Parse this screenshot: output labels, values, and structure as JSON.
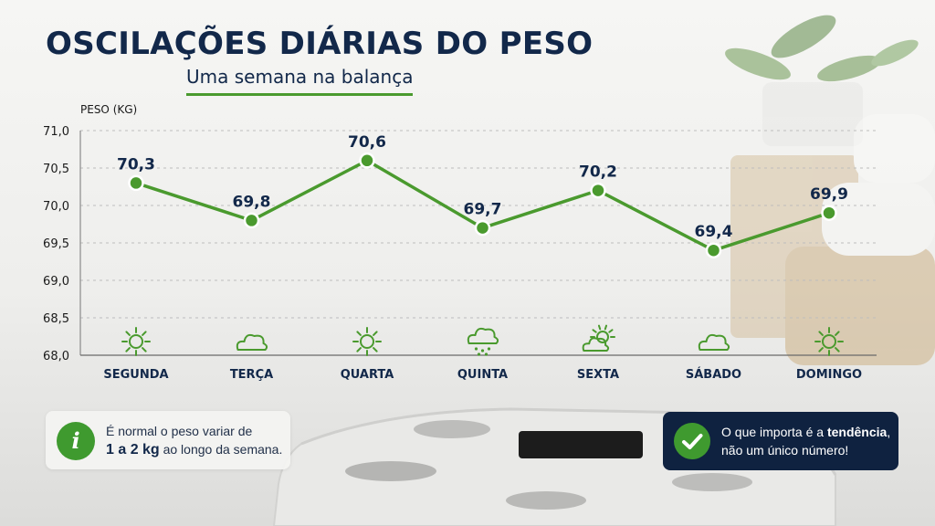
{
  "header": {
    "title": "OSCILAÇÕES DIÁRIAS DO PESO",
    "subtitle": "Uma semana na balança"
  },
  "colors": {
    "line": "#4a9a2e",
    "point": "#4a9a2e",
    "title": "#12284a",
    "axis_text": "#1a1a1a",
    "tip_background": "#0f2240"
  },
  "chart_data": {
    "type": "line",
    "title": "OSCILAÇÕES DIÁRIAS DO PESO",
    "subtitle": "Uma semana na balança",
    "xlabel": "",
    "ylabel": "PESO (KG)",
    "categories": [
      "SEGUNDA",
      "TERÇA",
      "QUARTA",
      "QUINTA",
      "SEXTA",
      "SÁBADO",
      "DOMINGO"
    ],
    "values": [
      70.3,
      69.8,
      70.6,
      69.7,
      70.2,
      69.4,
      69.9
    ],
    "data_labels": [
      "70,3",
      "69,8",
      "70,6",
      "69,7",
      "70,2",
      "69,4",
      "69,9"
    ],
    "ylim": [
      68.0,
      71.0
    ],
    "yticks": [
      68.0,
      68.5,
      69.0,
      69.5,
      70.0,
      70.5,
      71.0
    ],
    "ytick_labels": [
      "68,0",
      "68,5",
      "69,0",
      "69,5",
      "70,0",
      "70,5",
      "71,0"
    ],
    "grid": true,
    "legend": "none",
    "weather_icons": [
      "sun-icon",
      "cloud-icon",
      "sun-icon",
      "rain-cloud-icon",
      "partly-cloudy-icon",
      "cloud-icon",
      "sun-icon"
    ]
  },
  "info": {
    "icon": "info-icon",
    "text_before": "É normal o peso variar de",
    "text_bold": "1 a 2 kg",
    "text_after": "ao longo da semana."
  },
  "tip": {
    "icon": "checkmark-icon",
    "text_before": "O que importa é a",
    "text_bold": "tendência",
    "text_after": ", não um único número!"
  }
}
